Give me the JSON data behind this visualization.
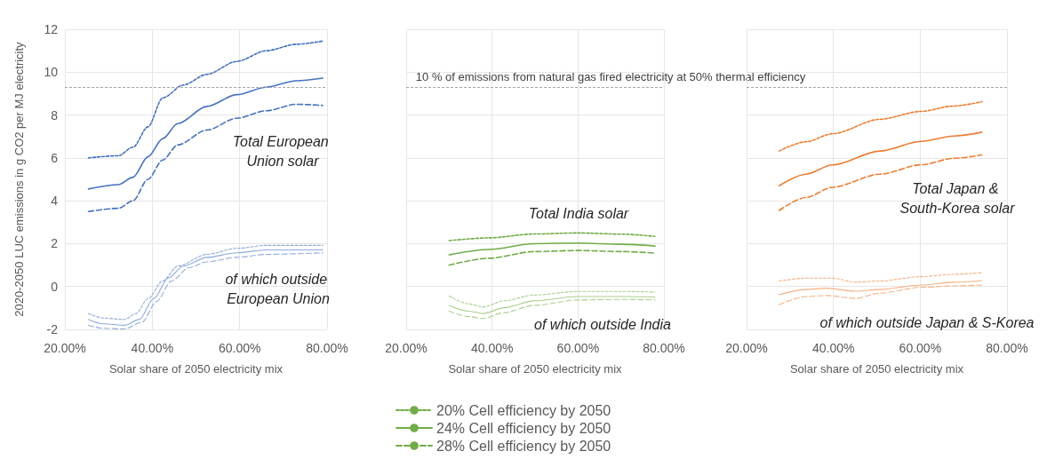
{
  "chart_data": [
    {
      "type": "line",
      "ylabel": "2020-2050 LUC emissions in g CO2 per MJ electricity",
      "xlabel": "Solar share of 2050 electricity mix",
      "xlim": [
        20,
        80
      ],
      "xticks": [
        {
          "value": 20,
          "label": "20.00%"
        },
        {
          "value": 40,
          "label": "40.00%"
        },
        {
          "value": 60,
          "label": "60.00%"
        },
        {
          "value": 80,
          "label": "80.00%"
        }
      ],
      "ylim": [
        -2,
        12
      ],
      "yticks": [
        -2,
        0,
        2,
        4,
        6,
        8,
        10,
        12
      ],
      "grid": true,
      "marker": "none",
      "series": [
        {
          "color": "#4472c4",
          "line_style": "dotted",
          "x": [
            25.4,
            32.2,
            35.6,
            39.0,
            42.4,
            47.1,
            52.5,
            59.3,
            66.1,
            72.9,
            79.0
          ],
          "values": [
            6.0,
            6.1,
            6.5,
            7.45,
            8.8,
            9.4,
            9.9,
            10.5,
            11.0,
            11.3,
            11.45
          ]
        },
        {
          "color": "#4472c4",
          "line_style": "solid",
          "x": [
            25.4,
            32.2,
            35.6,
            39.0,
            42.4,
            45.8,
            52.5,
            59.3,
            66.1,
            72.9,
            79.0
          ],
          "values": [
            4.55,
            4.75,
            5.1,
            6.05,
            6.9,
            7.6,
            8.4,
            8.95,
            9.3,
            9.6,
            9.72
          ]
        },
        {
          "color": "#4472c4",
          "line_style": "dashed",
          "x": [
            25.4,
            32.2,
            35.6,
            39.0,
            42.4,
            45.8,
            52.5,
            59.3,
            66.1,
            72.9,
            79.0
          ],
          "values": [
            3.5,
            3.65,
            4.0,
            5.0,
            5.9,
            6.6,
            7.3,
            7.85,
            8.2,
            8.5,
            8.45
          ]
        },
        {
          "color": "#8eaadb",
          "line_style": "dotted",
          "x": [
            25.4,
            28.8,
            33.6,
            36.3,
            39.0,
            42.4,
            45.8,
            52.5,
            59.3,
            66.1,
            79.0
          ],
          "values": [
            -1.26,
            -1.47,
            -1.54,
            -1.26,
            -0.57,
            0.26,
            0.95,
            1.5,
            1.78,
            1.92,
            1.92
          ]
        },
        {
          "color": "#8eaadb",
          "line_style": "solid",
          "x": [
            25.4,
            28.8,
            33.6,
            37.0,
            40.3,
            43.7,
            47.1,
            52.5,
            59.3,
            66.1,
            79.0
          ],
          "values": [
            -1.54,
            -1.74,
            -1.81,
            -1.54,
            -0.57,
            0.4,
            0.95,
            1.36,
            1.57,
            1.71,
            1.71
          ]
        },
        {
          "color": "#8eaadb",
          "line_style": "dashed",
          "x": [
            25.4,
            28.8,
            33.6,
            37.6,
            41.0,
            44.4,
            48.4,
            52.5,
            59.3,
            66.1,
            79.0
          ],
          "values": [
            -1.81,
            -1.95,
            -1.98,
            -1.67,
            -0.7,
            0.26,
            0.88,
            1.15,
            1.36,
            1.5,
            1.57
          ]
        }
      ],
      "ref_lines": [
        {
          "axis": "y",
          "value": 9.3,
          "color": "#a6a6a6",
          "line_style": "dotted"
        }
      ],
      "annotations": [
        "Total European Union solar",
        "of which outside European Union"
      ]
    },
    {
      "type": "line",
      "xlabel": "Solar share of 2050 electricity mix",
      "xlim": [
        20,
        80
      ],
      "xticks": [
        {
          "value": 20,
          "label": "20.00%"
        },
        {
          "value": 40,
          "label": "40.00%"
        },
        {
          "value": 60,
          "label": "60.00%"
        },
        {
          "value": 80,
          "label": "80.00%"
        }
      ],
      "ylim": [
        -2,
        12
      ],
      "yticks": [
        -2,
        0,
        2,
        4,
        6,
        8,
        10,
        12
      ],
      "tick_labels": "x",
      "grid": true,
      "marker": "none",
      "legend": "bottom",
      "series": [
        {
          "name": "20% Cell efficiency by 2050",
          "color": "#70ad47",
          "line_style": "dotted",
          "x": [
            30.0,
            39.3,
            49.7,
            60.0,
            70.3,
            77.9
          ],
          "values": [
            2.14,
            2.27,
            2.45,
            2.5,
            2.44,
            2.34
          ]
        },
        {
          "name": "24% Cell efficiency by 2050",
          "color": "#70ad47",
          "line_style": "solid",
          "x": [
            30.0,
            39.3,
            49.7,
            60.0,
            70.3,
            77.9
          ],
          "values": [
            1.48,
            1.73,
            2.0,
            2.03,
            1.97,
            1.89
          ]
        },
        {
          "name": "28% Cell efficiency by 2050",
          "color": "#70ad47",
          "line_style": "dashed",
          "x": [
            30.0,
            39.3,
            49.7,
            60.0,
            70.3,
            77.9
          ],
          "values": [
            1.0,
            1.32,
            1.63,
            1.68,
            1.63,
            1.56
          ]
        },
        {
          "color": "#a9d18e",
          "line_style": "dotted",
          "x": [
            30.0,
            34.5,
            37.9,
            42.8,
            49.7,
            60.0,
            70.3,
            77.9
          ],
          "values": [
            -0.44,
            -0.81,
            -0.95,
            -0.67,
            -0.4,
            -0.23,
            -0.23,
            -0.26
          ]
        },
        {
          "color": "#a9d18e",
          "line_style": "solid",
          "x": [
            30.0,
            34.5,
            37.9,
            42.8,
            49.7,
            60.0,
            70.3,
            77.9
          ],
          "values": [
            -0.88,
            -1.15,
            -1.26,
            -0.99,
            -0.67,
            -0.47,
            -0.47,
            -0.49
          ]
        },
        {
          "color": "#a9d18e",
          "line_style": "dashed",
          "x": [
            30.0,
            34.5,
            37.9,
            42.8,
            49.7,
            60.0,
            70.3,
            77.9
          ],
          "values": [
            -1.15,
            -1.4,
            -1.49,
            -1.22,
            -0.88,
            -0.63,
            -0.6,
            -0.63
          ]
        }
      ],
      "ref_lines": [
        {
          "axis": "y",
          "value": 9.3,
          "label": "10 % of emissions from natural gas fired electricity at 50% thermal efficiency",
          "color": "#a6a6a6",
          "line_style": "dotted"
        }
      ],
      "annotations": [
        "Total India solar",
        "of which outside India"
      ]
    },
    {
      "type": "line",
      "xlabel": "Solar share of 2050 electricity mix",
      "xlim": [
        20,
        80
      ],
      "xticks": [
        {
          "value": 20,
          "label": "20.00%"
        },
        {
          "value": 40,
          "label": "40.00%"
        },
        {
          "value": 60,
          "label": "60.00%"
        },
        {
          "value": 80,
          "label": "80.00%"
        }
      ],
      "ylim": [
        -2,
        12
      ],
      "yticks": [
        -2,
        0,
        2,
        4,
        6,
        8,
        10,
        12
      ],
      "tick_labels": "x",
      "grid": true,
      "marker": "none",
      "series": [
        {
          "color": "#ed7d31",
          "line_style": "dotted",
          "x": [
            27.5,
            33.6,
            39.8,
            50.7,
            60.2,
            67.7,
            74.2
          ],
          "values": [
            6.32,
            6.75,
            7.13,
            7.8,
            8.17,
            8.42,
            8.62
          ]
        },
        {
          "color": "#ed7d31",
          "line_style": "solid",
          "x": [
            27.5,
            33.6,
            39.8,
            50.7,
            60.2,
            67.7,
            74.2
          ],
          "values": [
            4.7,
            5.24,
            5.67,
            6.32,
            6.77,
            7.02,
            7.2
          ]
        },
        {
          "color": "#ed7d31",
          "line_style": "dashed",
          "x": [
            27.5,
            33.6,
            39.8,
            50.7,
            60.2,
            67.7,
            74.2
          ],
          "values": [
            3.55,
            4.15,
            4.63,
            5.24,
            5.68,
            5.98,
            6.14
          ]
        },
        {
          "color": "#f4b183",
          "line_style": "dotted",
          "x": [
            27.5,
            33.6,
            39.8,
            45.2,
            50.7,
            60.2,
            67.7,
            74.2
          ],
          "values": [
            0.26,
            0.39,
            0.39,
            0.2,
            0.26,
            0.46,
            0.57,
            0.64
          ]
        },
        {
          "color": "#f4b183",
          "line_style": "solid",
          "x": [
            27.5,
            33.6,
            38.4,
            45.2,
            50.7,
            60.2,
            67.7,
            74.2
          ],
          "values": [
            -0.38,
            -0.14,
            -0.08,
            -0.22,
            -0.14,
            0.07,
            0.2,
            0.27
          ]
        },
        {
          "color": "#f4b183",
          "line_style": "dashed",
          "x": [
            27.5,
            33.6,
            38.4,
            45.2,
            50.7,
            60.2,
            67.7,
            74.2
          ],
          "values": [
            -0.85,
            -0.47,
            -0.42,
            -0.55,
            -0.31,
            -0.04,
            0.03,
            0.07
          ]
        }
      ],
      "ref_lines": [
        {
          "axis": "y",
          "value": 9.3,
          "color": "#a6a6a6",
          "line_style": "dotted"
        }
      ],
      "annotations": [
        "Total Japan & South-Korea solar",
        "of which outside Japan & S-Korea"
      ]
    }
  ]
}
